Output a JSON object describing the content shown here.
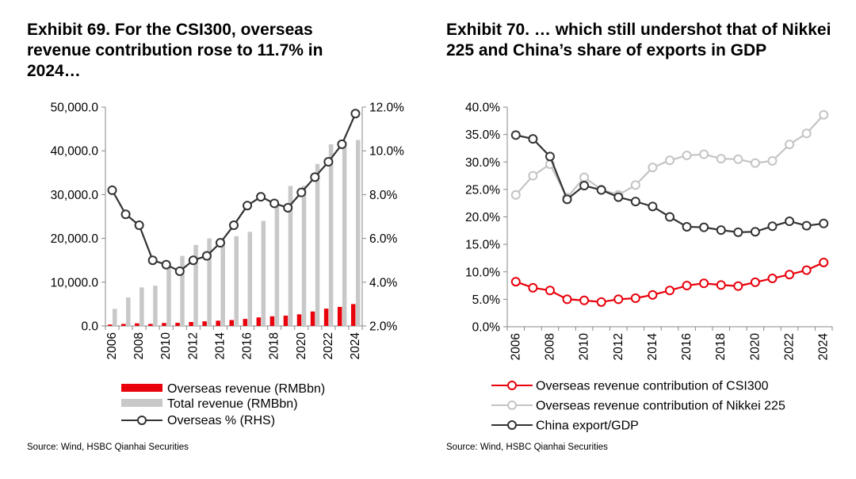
{
  "exhibit69": {
    "title": "Exhibit 69. For the CSI300, overseas revenue contribution rose to 11.7% in 2024…",
    "source": "Source: Wind, HSBC Qianhai Securities"
  },
  "exhibit70": {
    "title": "Exhibit 70. … which still undershot that of Nikkei 225 and China’s share of exports in GDP",
    "source": "Source: Wind, HSBC Qianhai Securities"
  },
  "chart_data": [
    {
      "type": "bar+line",
      "title": "Exhibit 69",
      "x": [
        2006,
        2007,
        2008,
        2009,
        2010,
        2011,
        2012,
        2013,
        2014,
        2015,
        2016,
        2017,
        2018,
        2019,
        2020,
        2021,
        2022,
        2023,
        2024
      ],
      "x_tick_labels": [
        "2006",
        "2008",
        "2010",
        "2012",
        "2014",
        "2016",
        "2018",
        "2020",
        "2022",
        "2024"
      ],
      "ylim": [
        0,
        50000
      ],
      "y_tick_labels": [
        "0.0",
        "10,000.0",
        "20,000.0",
        "30,000.0",
        "40,000.0",
        "50,000.0"
      ],
      "y2lim": [
        2,
        12
      ],
      "y2_tick_labels": [
        "2.0%",
        "4.0%",
        "6.0%",
        "8.0%",
        "10.0%",
        "12.0%"
      ],
      "series": [
        {
          "name": "Overseas revenue (RMBbn)",
          "kind": "bar",
          "axis": "left",
          "color": "#e8000b",
          "values": [
            320,
            470,
            600,
            470,
            680,
            720,
            900,
            1050,
            1200,
            1350,
            1600,
            1950,
            2200,
            2350,
            2650,
            3300,
            3950,
            4350,
            5000
          ]
        },
        {
          "name": "Total revenue (RMBbn)",
          "kind": "bar",
          "axis": "left",
          "color": "#c8c8c8",
          "values": [
            3900,
            6500,
            8800,
            9200,
            14000,
            16000,
            18500,
            20000,
            19800,
            20500,
            21500,
            24000,
            28000,
            32000,
            32000,
            37000,
            41500,
            42000,
            42500
          ]
        },
        {
          "name": "Overseas % (RHS)",
          "kind": "line",
          "axis": "right",
          "color": "#333333",
          "values": [
            8.2,
            7.1,
            6.6,
            5.0,
            4.8,
            4.5,
            5.0,
            5.2,
            5.8,
            6.6,
            7.5,
            7.9,
            7.6,
            7.4,
            8.1,
            8.8,
            9.5,
            10.3,
            11.7
          ]
        }
      ],
      "legend": "bottom"
    },
    {
      "type": "line",
      "title": "Exhibit 70",
      "x": [
        2006,
        2007,
        2008,
        2009,
        2010,
        2011,
        2012,
        2013,
        2014,
        2015,
        2016,
        2017,
        2018,
        2019,
        2020,
        2021,
        2022,
        2023,
        2024
      ],
      "x_tick_labels": [
        "2006",
        "2008",
        "2010",
        "2012",
        "2014",
        "2016",
        "2018",
        "2020",
        "2022",
        "2024"
      ],
      "ylim": [
        0,
        40
      ],
      "y_tick_labels": [
        "0.0%",
        "5.0%",
        "10.0%",
        "15.0%",
        "20.0%",
        "25.0%",
        "30.0%",
        "35.0%",
        "40.0%"
      ],
      "series": [
        {
          "name": "Overseas revenue contribution of CSI300",
          "color": "#e8000b",
          "values": [
            8.2,
            7.1,
            6.6,
            5.0,
            4.8,
            4.5,
            5.0,
            5.2,
            5.8,
            6.6,
            7.5,
            7.9,
            7.6,
            7.4,
            8.1,
            8.8,
            9.5,
            10.3,
            11.7
          ]
        },
        {
          "name": "Overseas revenue contribution of Nikkei 225",
          "color": "#c4c4c4",
          "values": [
            24.0,
            27.5,
            29.6,
            23.5,
            27.2,
            25.0,
            24.0,
            25.8,
            29.0,
            30.3,
            31.2,
            31.4,
            30.6,
            30.5,
            29.8,
            30.2,
            33.2,
            35.2,
            38.6
          ]
        },
        {
          "name": "China export/GDP",
          "color": "#333333",
          "values": [
            34.9,
            34.2,
            31.0,
            23.2,
            25.7,
            24.9,
            23.6,
            22.8,
            21.9,
            20.0,
            18.2,
            18.1,
            17.6,
            17.2,
            17.3,
            18.3,
            19.2,
            18.4,
            18.8
          ]
        }
      ],
      "legend": "bottom"
    }
  ]
}
